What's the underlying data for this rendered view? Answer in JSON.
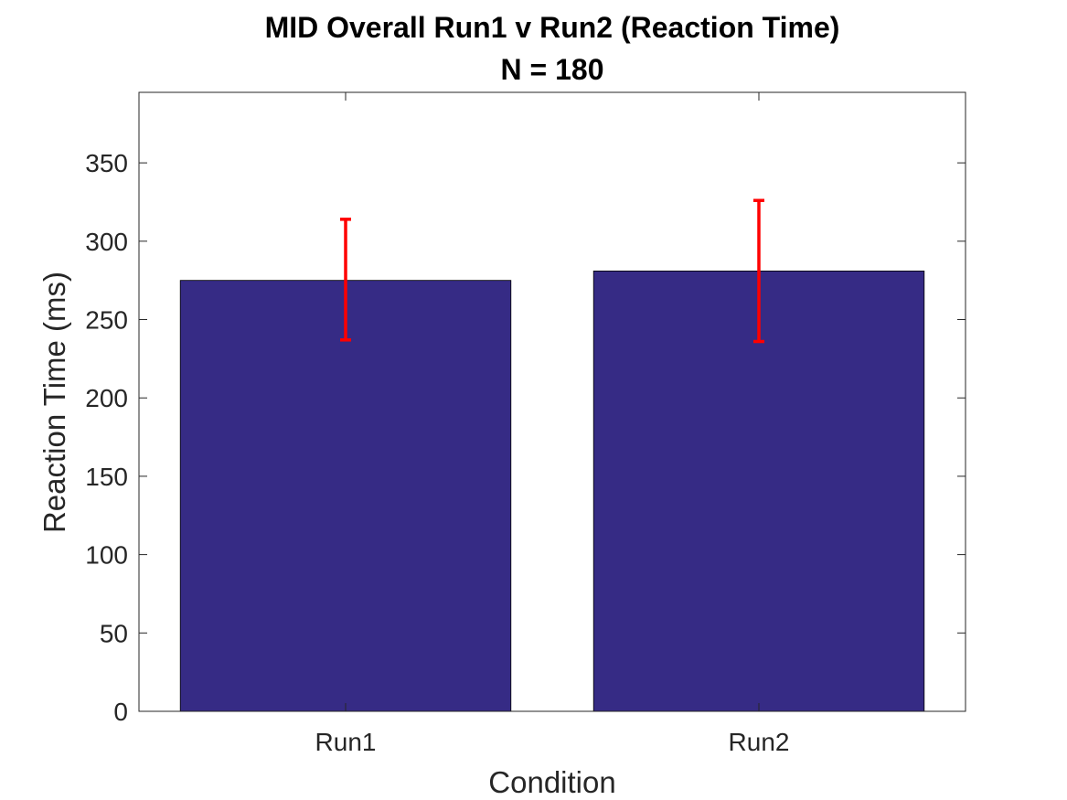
{
  "chart_data": {
    "type": "bar",
    "title": "MID Overall Run1 v Run2 (Reaction Time)",
    "subtitle": "N = 180",
    "xlabel": "Condition",
    "ylabel": "Reaction Time (ms)",
    "categories": [
      "Run1",
      "Run2"
    ],
    "values": [
      275,
      281
    ],
    "error_bars": [
      {
        "low": 237,
        "high": 314
      },
      {
        "low": 236,
        "high": 326
      }
    ],
    "ylim": [
      0,
      395
    ],
    "yticks": [
      0,
      50,
      100,
      150,
      200,
      250,
      300,
      350
    ],
    "grid": false,
    "legend": "none",
    "colors": {
      "bar": "#362b85",
      "error_bar": "#ff0000",
      "axis": "#262626"
    }
  }
}
